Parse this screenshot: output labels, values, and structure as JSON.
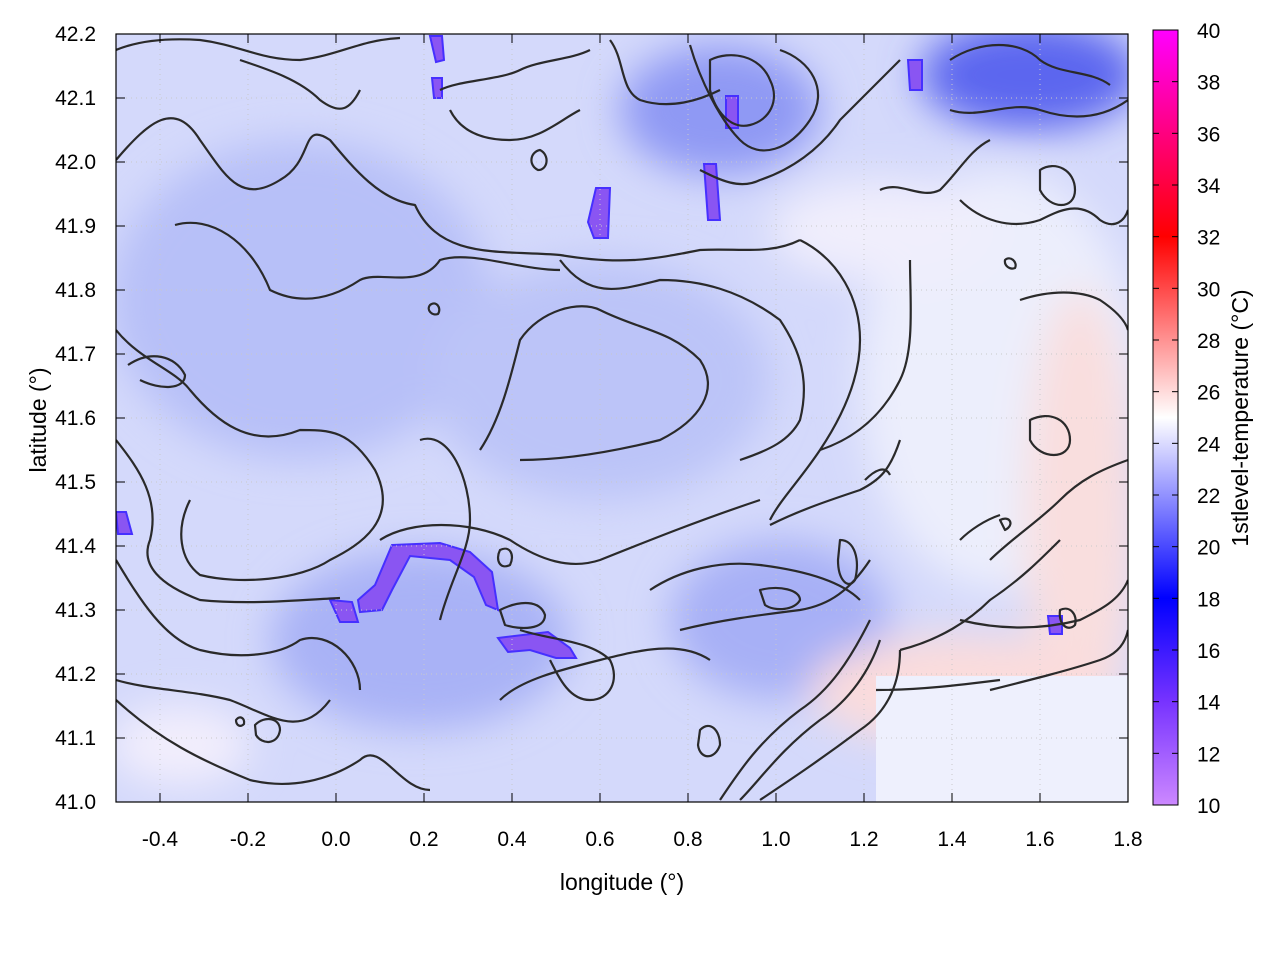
{
  "chart_data": {
    "type": "heatmap",
    "title": "",
    "xlabel": "longitude (°)",
    "ylabel": "latitude (°)",
    "colorbar_label": "1stlevel-temperature (°C)",
    "xlim": [
      -0.5,
      1.8
    ],
    "ylim": [
      41.0,
      42.2
    ],
    "x_ticks": [
      "-0.4",
      "-0.2",
      "0.0",
      "0.2",
      "0.4",
      "0.6",
      "0.8",
      "1.0",
      "1.2",
      "1.4",
      "1.6",
      "1.8"
    ],
    "x_tick_values": [
      -0.4,
      -0.2,
      0.0,
      0.2,
      0.4,
      0.6,
      0.8,
      1.0,
      1.2,
      1.4,
      1.6,
      1.8
    ],
    "y_ticks": [
      "41.0",
      "41.1",
      "41.2",
      "41.3",
      "41.4",
      "41.5",
      "41.6",
      "41.7",
      "41.8",
      "41.9",
      "42.0",
      "42.1",
      "42.2"
    ],
    "y_tick_values": [
      41.0,
      41.1,
      41.2,
      41.3,
      41.4,
      41.5,
      41.6,
      41.7,
      41.8,
      41.9,
      42.0,
      42.1,
      42.2
    ],
    "colorbar_range": [
      10,
      40
    ],
    "colorbar_ticks": [
      "10",
      "12",
      "14",
      "16",
      "18",
      "20",
      "22",
      "24",
      "26",
      "28",
      "30",
      "32",
      "34",
      "36",
      "38",
      "40"
    ],
    "colorbar_tick_values": [
      10,
      12,
      14,
      16,
      18,
      20,
      22,
      24,
      26,
      28,
      30,
      32,
      34,
      36,
      38,
      40
    ],
    "colorscale": [
      {
        "value": 10,
        "color": "#cc88ff"
      },
      {
        "value": 14,
        "color": "#7733ff"
      },
      {
        "value": 18,
        "color": "#0000ff"
      },
      {
        "value": 25,
        "color": "#ffffff"
      },
      {
        "value": 32,
        "color": "#ff0000"
      },
      {
        "value": 40,
        "color": "#ff00ff"
      }
    ],
    "grid": true,
    "contours": true,
    "field_summary": "Mostly 20–25 °C (light blue) over the interior; coolest pockets (~12–18 °C) in the northeast corner and along a band near 41.25–41.4 lat; warmer 25–28 °C (light red) patches along the southeast coast and eastern edge."
  }
}
